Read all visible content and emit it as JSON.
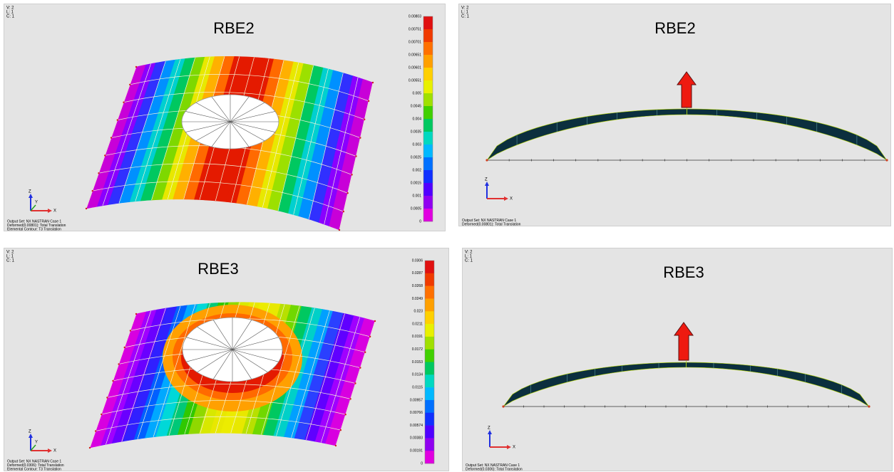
{
  "panels": [
    {
      "view": "V: 2",
      "layer": "L: 1",
      "case": "C: 1",
      "title": "RBE2",
      "legend": [
        "0.00803",
        "0.00751",
        "0.00701",
        "0.00651",
        "0.00601",
        "0.00551",
        "0.005",
        "0.0045",
        "0.004",
        "0.0035",
        "0.003",
        "0.0025",
        "0.002",
        "0.0015",
        "0.001",
        "0.0005",
        "0"
      ],
      "footer": [
        "Output Set: NX NASTRAN Case 1",
        "Deformed(0.00801): Total Translation",
        "Elemental Contour: T3 Translation"
      ],
      "axes": {
        "z": "Z",
        "y": "Y",
        "x": "X"
      }
    },
    {
      "view": "V: 2",
      "layer": "L: 1",
      "case": "C: 1",
      "title": "RBE2",
      "footer": [
        "Output Set: NX NASTRAN Case 1",
        "Deformed(0.00801): Total Translation"
      ],
      "axes": {
        "z": "Z",
        "x": "X"
      }
    },
    {
      "view": "V: 2",
      "layer": "L: 1",
      "case": "C: 1",
      "title": "RBE3",
      "legend": [
        "0.0306",
        "0.0287",
        "0.0268",
        "0.0249",
        "0.023",
        "0.0211",
        "0.0191",
        "0.0172",
        "0.0153",
        "0.0134",
        "0.0115",
        "0.00957",
        "0.00766",
        "0.00574",
        "0.00383",
        "0.00191",
        "0"
      ],
      "footer": [
        "Output Set: NX NASTRAN Case 1",
        "Deformed(0.0306): Total Translation",
        "Elemental Contour: T3 Translation"
      ],
      "axes": {
        "z": "Z",
        "y": "Y",
        "x": "X"
      }
    },
    {
      "view": "V: 2",
      "layer": "L: 1",
      "case": "C: 1",
      "title": "RBE3",
      "footer": [
        "Output Set: NX NASTRAN Case 1",
        "Deformed(0.0306): Total Translation"
      ],
      "axes": {
        "z": "Z",
        "x": "X"
      }
    }
  ]
}
